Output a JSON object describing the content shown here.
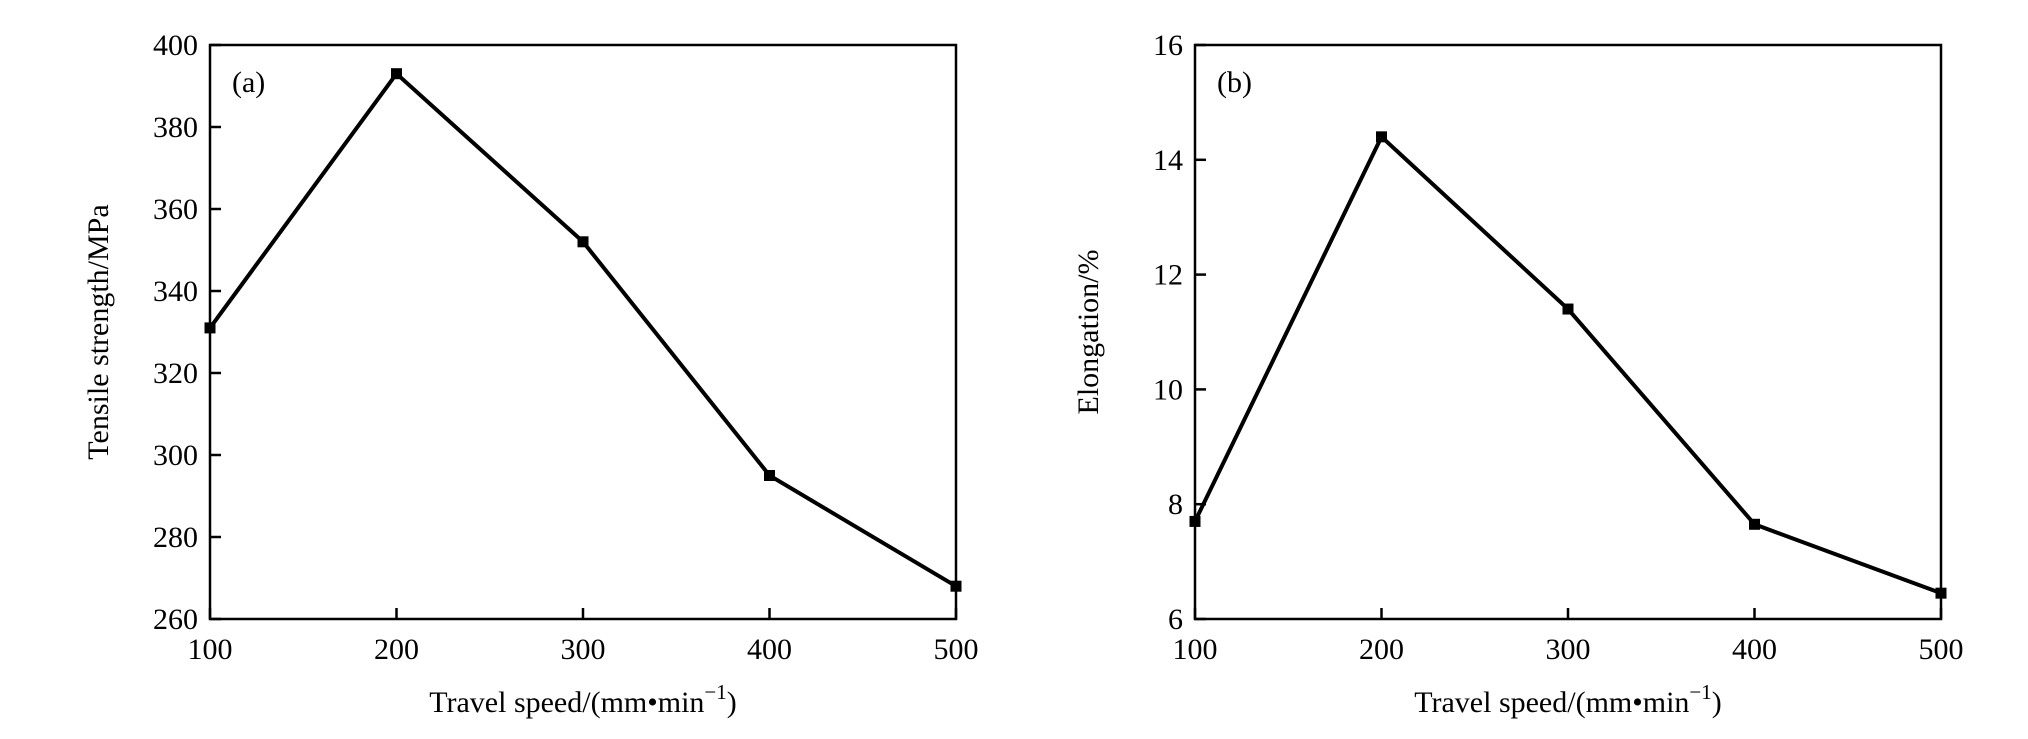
{
  "chart_data": [
    {
      "type": "line",
      "panel_label": "(a)",
      "x": [
        100,
        200,
        300,
        400,
        500
      ],
      "series": [
        {
          "values": [
            331,
            393,
            352,
            295,
            268
          ]
        }
      ],
      "xlabel_main": "Travel speed/(mm•min",
      "xlabel_sup": "−1",
      "xlabel_end": ")",
      "ylabel": "Tensile strength/MPa",
      "xlim": [
        100,
        500
      ],
      "ylim": [
        260,
        400
      ],
      "xticks": [
        100,
        200,
        300,
        400,
        500
      ],
      "yticks": [
        260,
        280,
        300,
        320,
        340,
        360,
        380,
        400
      ],
      "marker": "square",
      "grid": false
    },
    {
      "type": "line",
      "panel_label": "(b)",
      "x": [
        100,
        200,
        300,
        400,
        500
      ],
      "series": [
        {
          "values": [
            7.7,
            14.4,
            11.4,
            7.65,
            6.45
          ]
        }
      ],
      "xlabel_main": "Travel speed/(mm•min",
      "xlabel_sup": "−1",
      "xlabel_end": ")",
      "ylabel": "Elongation/%",
      "xlim": [
        100,
        500
      ],
      "ylim": [
        6,
        16
      ],
      "xticks": [
        100,
        200,
        300,
        400,
        500
      ],
      "yticks": [
        6,
        8,
        10,
        12,
        14,
        16
      ],
      "marker": "square",
      "grid": false
    }
  ]
}
